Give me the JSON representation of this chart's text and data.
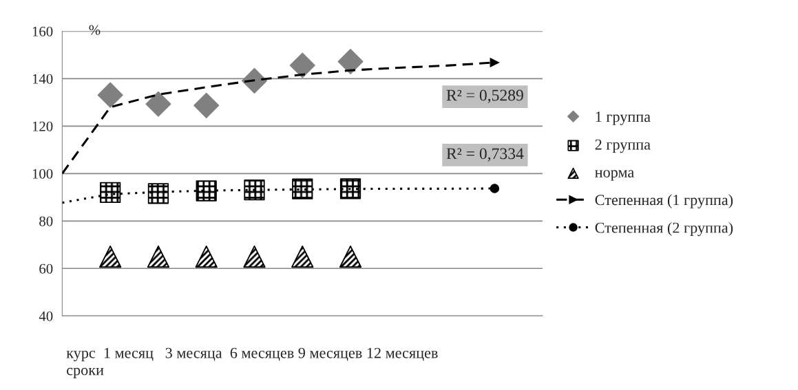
{
  "chart_data": {
    "type": "scatter",
    "xlabel": "курс  1 месяц   3 месяца  6 месяцев 9 месяцев 12 месяцев\nсроки",
    "ylabel": "%",
    "categories": [
      null,
      null,
      null,
      null,
      null,
      null,
      null,
      null,
      null,
      null,
      null
    ],
    "ylim": [
      40,
      160
    ],
    "yticks": [
      40,
      60,
      80,
      100,
      120,
      140,
      160
    ],
    "grid": "y",
    "legend": "right",
    "series": [
      {
        "name": "1 группа",
        "color": "#808080",
        "marker": "diamond",
        "values": [
          null,
          133.1,
          129.3,
          128.7,
          139.1,
          145.6,
          147.2,
          null,
          null,
          null,
          null
        ]
      },
      {
        "name": "2 группа",
        "color": "#000000",
        "marker": "square",
        "values": [
          null,
          92.0,
          91.6,
          92.7,
          93.1,
          93.5,
          93.6,
          null,
          null,
          null,
          null
        ]
      },
      {
        "name": "норма",
        "color": "#000000",
        "marker": "triangle",
        "values": [
          null,
          65,
          65,
          65,
          65,
          65,
          65,
          null,
          null,
          null,
          null
        ]
      },
      {
        "name": "Степенная (1 группа)",
        "type": "line",
        "color": "#000000",
        "line_style": "dashed",
        "values": [
          100,
          128,
          133.3,
          136.4,
          139.3,
          141.7,
          143.5,
          144.6,
          145.5,
          146.8,
          null
        ]
      },
      {
        "name": "Степенная (2 группа)",
        "type": "line",
        "color": "#000000",
        "line_style": "dotted",
        "values": [
          87.7,
          91.3,
          92.2,
          92.8,
          93.1,
          93.3,
          93.5,
          93.6,
          93.6,
          93.7,
          null
        ]
      }
    ],
    "annotations": [
      "R² = 0,5289",
      "R² = 0,7334"
    ]
  }
}
